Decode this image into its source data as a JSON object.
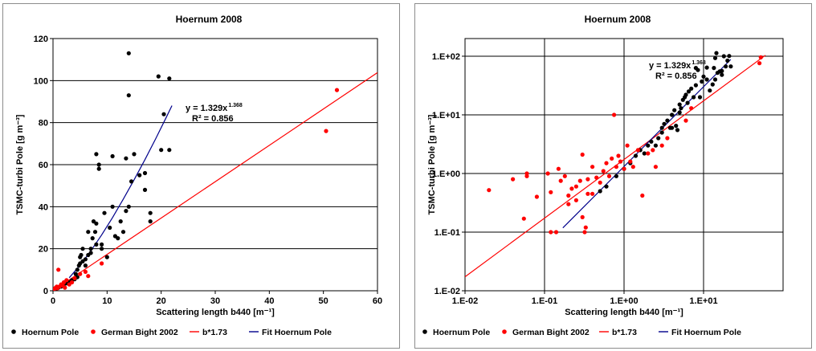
{
  "chart_data": [
    {
      "type": "scatter",
      "title": "Hoernum 2008",
      "xlabel": "Scattering length  b440 [m⁻¹]",
      "ylabel": "TSMC-turbi Pole [g m⁻³]",
      "xlim": [
        0,
        60
      ],
      "ylim": [
        0,
        120
      ],
      "x_ticks": [
        0,
        10,
        20,
        30,
        40,
        50,
        60
      ],
      "y_ticks": [
        0,
        20,
        40,
        60,
        80,
        100,
        120
      ],
      "x_tick_labels": [
        "0",
        "10",
        "20",
        "30",
        "40",
        "50",
        "60"
      ],
      "y_tick_labels": [
        "0",
        "20",
        "40",
        "60",
        "80",
        "100",
        "120"
      ],
      "grid": true,
      "legend_position": "bottom",
      "annotation": {
        "equation": "y = 1.329x",
        "exponent": "1.368",
        "r2": "R² = 0.856"
      },
      "series": [
        {
          "name": "Hoernum Pole",
          "kind": "points",
          "color": "#000000",
          "points": [
            [
              0.3,
              0.5
            ],
            [
              0.6,
              1
            ],
            [
              1,
              1.5
            ],
            [
              1.5,
              2
            ],
            [
              2,
              3
            ],
            [
              2.5,
              3.5
            ],
            [
              3,
              4
            ],
            [
              3.5,
              5
            ],
            [
              4,
              5.5
            ],
            [
              4.2,
              8
            ],
            [
              4.5,
              6.5
            ],
            [
              4.5,
              10
            ],
            [
              4.8,
              12
            ],
            [
              5,
              13
            ],
            [
              5,
              16
            ],
            [
              5.2,
              17
            ],
            [
              5.5,
              14
            ],
            [
              5.5,
              20
            ],
            [
              6,
              12
            ],
            [
              6,
              15
            ],
            [
              6.5,
              17
            ],
            [
              6.5,
              28
            ],
            [
              7,
              18
            ],
            [
              7,
              20
            ],
            [
              7.3,
              25
            ],
            [
              7.5,
              33
            ],
            [
              7.8,
              28
            ],
            [
              8,
              22
            ],
            [
              8,
              32
            ],
            [
              8,
              65
            ],
            [
              8.5,
              58
            ],
            [
              8.5,
              60
            ],
            [
              9,
              20
            ],
            [
              9,
              22
            ],
            [
              9.5,
              37
            ],
            [
              10,
              16
            ],
            [
              10.5,
              30
            ],
            [
              11,
              40
            ],
            [
              11,
              64
            ],
            [
              11.5,
              26
            ],
            [
              12,
              25
            ],
            [
              12.5,
              33
            ],
            [
              13,
              28
            ],
            [
              13.5,
              38
            ],
            [
              13.5,
              63
            ],
            [
              14,
              40
            ],
            [
              14,
              93
            ],
            [
              14,
              113
            ],
            [
              14.5,
              52
            ],
            [
              15,
              65
            ],
            [
              16,
              55
            ],
            [
              17,
              48
            ],
            [
              17,
              56
            ],
            [
              18,
              33
            ],
            [
              18,
              37
            ],
            [
              19.5,
              102
            ],
            [
              20,
              67
            ],
            [
              20.5,
              84
            ],
            [
              21.5,
              101
            ],
            [
              21.5,
              67
            ]
          ]
        },
        {
          "name": "German Bight 2002",
          "kind": "points",
          "color": "#ff0000",
          "points": [
            [
              0.1,
              0.5
            ],
            [
              0.2,
              0.8
            ],
            [
              0.3,
              1
            ],
            [
              0.5,
              1.5
            ],
            [
              0.7,
              2
            ],
            [
              0.8,
              1.2
            ],
            [
              1,
              10
            ],
            [
              1.2,
              2
            ],
            [
              1.5,
              3
            ],
            [
              1.8,
              2.5
            ],
            [
              2,
              4
            ],
            [
              2.2,
              1.5
            ],
            [
              2.5,
              5
            ],
            [
              3,
              3
            ],
            [
              3.5,
              4
            ],
            [
              4,
              6
            ],
            [
              5,
              8
            ],
            [
              6,
              9
            ],
            [
              6.5,
              7
            ],
            [
              9,
              13
            ],
            [
              50.5,
              76
            ],
            [
              52.5,
              95.5
            ]
          ]
        },
        {
          "name": "b*1.73",
          "kind": "line",
          "color": "#ff0000",
          "points": [
            [
              0,
              0
            ],
            [
              60,
              103.8
            ]
          ]
        },
        {
          "name": "Fit Hoernum Pole",
          "kind": "line",
          "color": "#00008b",
          "points": [
            [
              3,
              6.2
            ],
            [
              5,
              12.2
            ],
            [
              7,
              19
            ],
            [
              9,
              26.6
            ],
            [
              11,
              34.8
            ],
            [
              13,
              43.6
            ],
            [
              15,
              52.8
            ],
            [
              17,
              62.4
            ],
            [
              19,
              72.4
            ],
            [
              21,
              82.8
            ],
            [
              22,
              88.1
            ]
          ]
        }
      ]
    },
    {
      "type": "scatter",
      "title": "Hoernum 2008",
      "xlabel": "Scattering length  b440 [m⁻¹]",
      "ylabel": "TSMC-turbi Pole [g m⁻³]",
      "xscale": "log",
      "yscale": "log",
      "xlim": [
        0.01,
        100
      ],
      "ylim": [
        0.01,
        200
      ],
      "x_ticks": [
        0.01,
        0.1,
        1,
        10
      ],
      "y_ticks": [
        0.01,
        0.1,
        1,
        10,
        100
      ],
      "x_tick_labels": [
        "1.E-02",
        "1.E-01",
        "1.E+00",
        "1.E+01"
      ],
      "y_tick_labels": [
        "1.E-02",
        "1.E-01",
        "1.E+00",
        "1.E+01",
        "1.E+02"
      ],
      "grid": true,
      "legend_position": "bottom",
      "annotation": {
        "equation": "y = 1.329x",
        "exponent": "1.368",
        "r2": "R² = 0.856"
      },
      "series": [
        {
          "name": "Hoernum Pole",
          "kind": "points",
          "color": "#000000",
          "points": [
            [
              0.5,
              0.5
            ],
            [
              0.6,
              0.6
            ],
            [
              0.8,
              0.9
            ],
            [
              1,
              1.2
            ],
            [
              1.2,
              1.5
            ],
            [
              1.4,
              2
            ],
            [
              1.6,
              2.5
            ],
            [
              1.8,
              2.2
            ],
            [
              2,
              3
            ],
            [
              2.2,
              3.5
            ],
            [
              2.5,
              3
            ],
            [
              2.7,
              4
            ],
            [
              3,
              5
            ],
            [
              3,
              6
            ],
            [
              3.2,
              7
            ],
            [
              3.5,
              8
            ],
            [
              3.8,
              6
            ],
            [
              4,
              10
            ],
            [
              4,
              6
            ],
            [
              4.3,
              12
            ],
            [
              4.5,
              6.5
            ],
            [
              4.7,
              5.5
            ],
            [
              5,
              15
            ],
            [
              5,
              11
            ],
            [
              5.2,
              13
            ],
            [
              5.5,
              18
            ],
            [
              5.8,
              20
            ],
            [
              6,
              22
            ],
            [
              6.3,
              16
            ],
            [
              6.5,
              25
            ],
            [
              7,
              28
            ],
            [
              7.5,
              20
            ],
            [
              8,
              32
            ],
            [
              8,
              63
            ],
            [
              8.5,
              58
            ],
            [
              9,
              20
            ],
            [
              9.5,
              37
            ],
            [
              10,
              45
            ],
            [
              11,
              40
            ],
            [
              11,
              64
            ],
            [
              12,
              26
            ],
            [
              13,
              33
            ],
            [
              13.5,
              63
            ],
            [
              14,
              40
            ],
            [
              14,
              93
            ],
            [
              14.5,
              113
            ],
            [
              15,
              52
            ],
            [
              16,
              55
            ],
            [
              17,
              48
            ],
            [
              17,
              56
            ],
            [
              18,
              100
            ],
            [
              19,
              67
            ],
            [
              20,
              84
            ],
            [
              21,
              101
            ],
            [
              22,
              67
            ]
          ]
        },
        {
          "name": "German Bight 2002",
          "kind": "points",
          "color": "#ff0000",
          "points": [
            [
              0.02,
              0.52
            ],
            [
              0.04,
              0.8
            ],
            [
              0.055,
              0.17
            ],
            [
              0.06,
              0.9
            ],
            [
              0.06,
              1
            ],
            [
              0.08,
              0.4
            ],
            [
              0.11,
              1
            ],
            [
              0.12,
              0.1
            ],
            [
              0.12,
              0.48
            ],
            [
              0.14,
              0.1
            ],
            [
              0.15,
              1.2
            ],
            [
              0.16,
              0.75
            ],
            [
              0.18,
              0.9
            ],
            [
              0.2,
              0.42
            ],
            [
              0.2,
              0.3
            ],
            [
              0.22,
              0.55
            ],
            [
              0.25,
              0.35
            ],
            [
              0.25,
              0.6
            ],
            [
              0.28,
              0.75
            ],
            [
              0.3,
              2.1
            ],
            [
              0.3,
              0.18
            ],
            [
              0.32,
              0.1
            ],
            [
              0.33,
              0.12
            ],
            [
              0.35,
              0.45
            ],
            [
              0.35,
              0.8
            ],
            [
              0.4,
              0.45
            ],
            [
              0.4,
              1.3
            ],
            [
              0.45,
              0.85
            ],
            [
              0.5,
              0.7
            ],
            [
              0.55,
              1.1
            ],
            [
              0.6,
              1.5
            ],
            [
              0.65,
              0.9
            ],
            [
              0.7,
              1.8
            ],
            [
              0.75,
              10
            ],
            [
              0.8,
              1.3
            ],
            [
              0.85,
              2
            ],
            [
              0.9,
              1.6
            ],
            [
              1,
              1.2
            ],
            [
              1.1,
              3
            ],
            [
              1.2,
              1.6
            ],
            [
              1.3,
              1.3
            ],
            [
              1.5,
              2.5
            ],
            [
              1.7,
              0.42
            ],
            [
              2,
              2.2
            ],
            [
              2.3,
              2.5
            ],
            [
              2.5,
              1.3
            ],
            [
              3,
              3
            ],
            [
              3.5,
              4
            ],
            [
              6,
              8
            ],
            [
              7,
              13
            ],
            [
              50.5,
              76
            ],
            [
              52.5,
              95.5
            ]
          ]
        },
        {
          "name": "b*1.73",
          "kind": "line",
          "color": "#ff0000",
          "points": [
            [
              0.01,
              0.0173
            ],
            [
              60,
              103.8
            ]
          ]
        },
        {
          "name": "Fit Hoernum Pole",
          "kind": "line",
          "color": "#00008b",
          "points": [
            [
              0.17,
              0.118
            ],
            [
              22,
              88.1
            ]
          ]
        }
      ]
    }
  ]
}
